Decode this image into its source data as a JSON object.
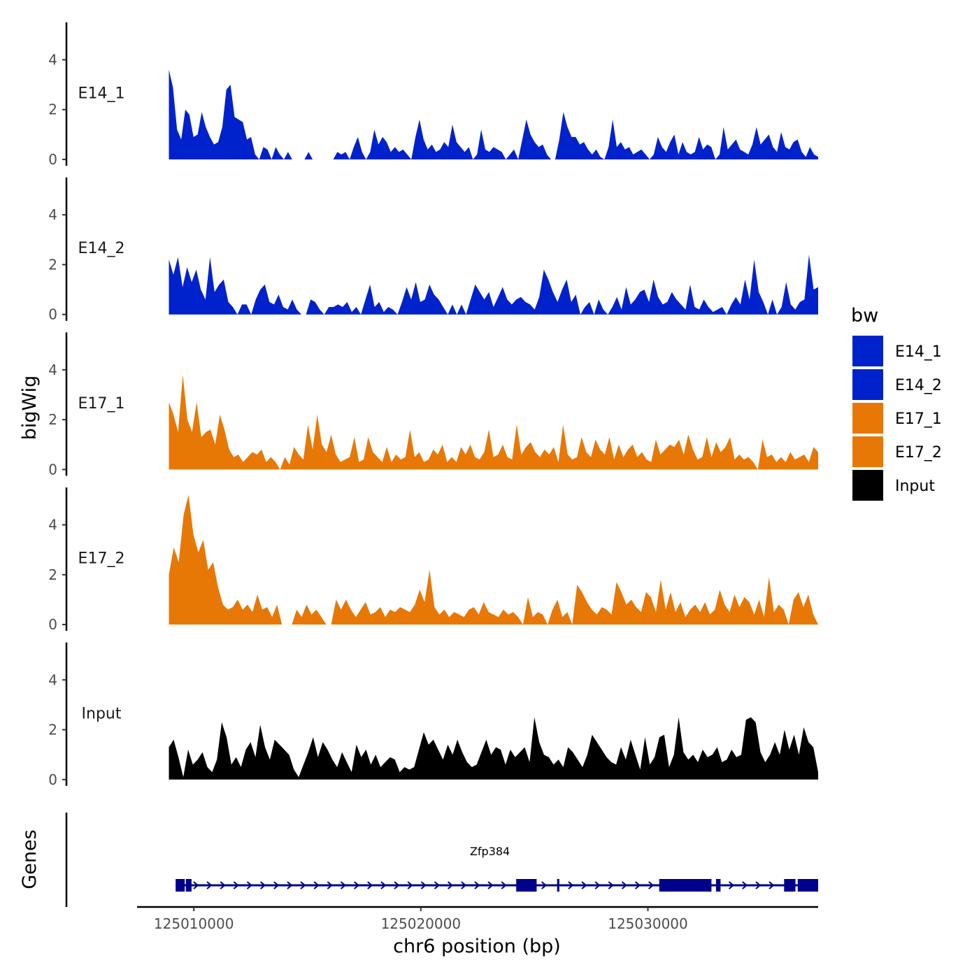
{
  "chart_data": {
    "type": "area",
    "xlabel": "chr6 position (bp)",
    "ylabel": "bigWig",
    "genes_label": "Genes",
    "xlim": [
      125007500,
      125037500
    ],
    "x_ticks": [
      125010000,
      125020000,
      125030000
    ],
    "x_tick_labels": [
      "125010000",
      "125020000",
      "125030000"
    ],
    "ylim": [
      0,
      5.5
    ],
    "y_ticks": [
      0,
      2,
      4
    ],
    "y_tick_labels": [
      "0",
      "2",
      "4"
    ],
    "track_start": 125008900,
    "track_end": 125037500,
    "colors": {
      "E14": "#0022cc",
      "E17": "#e87805",
      "Input": "#000000",
      "gene": "#00008b"
    },
    "series": [
      {
        "name": "E14_1",
        "color": "#0022cc",
        "values": [
          3.6,
          2.9,
          1.2,
          0.8,
          2.0,
          1.8,
          0.9,
          1.0,
          1.9,
          1.3,
          0.9,
          0.6,
          0.7,
          1.3,
          2.8,
          3.0,
          1.7,
          1.6,
          1.5,
          0.8,
          0.9,
          0.2,
          0,
          0.5,
          0.4,
          0,
          0.5,
          0.2,
          0,
          0.3,
          0,
          0,
          0,
          0,
          0.3,
          0,
          0,
          0,
          0,
          0,
          0,
          0.3,
          0.2,
          0.3,
          0,
          0.5,
          0.9,
          0.3,
          0,
          0.3,
          1.2,
          0.6,
          0.9,
          0.7,
          0.3,
          0.5,
          0.3,
          0.4,
          0.2,
          0,
          0.9,
          1.6,
          0.8,
          0.4,
          0.6,
          0.3,
          0.4,
          0.7,
          0.5,
          1.4,
          0.7,
          0.5,
          0.3,
          0.5,
          0,
          0.2,
          1.2,
          0.4,
          0.3,
          0.5,
          0.4,
          0.3,
          0,
          0.2,
          0.4,
          0,
          0.8,
          1.6,
          1.0,
          0.7,
          0.5,
          0.6,
          0.2,
          0,
          0,
          0.8,
          1.9,
          1.3,
          0.9,
          0.9,
          0.6,
          0.7,
          0.4,
          0.2,
          0.4,
          0.1,
          0,
          0.5,
          1.6,
          0.5,
          0.7,
          0.4,
          0.5,
          0.2,
          0.3,
          0.4,
          0.2,
          0,
          0.2,
          0.9,
          0.5,
          0.3,
          0.7,
          1.0,
          0.2,
          0.7,
          0.3,
          0.2,
          0.3,
          0.9,
          0.4,
          0.6,
          0.5,
          0,
          0.2,
          1.3,
          0.4,
          0.6,
          0.8,
          0.4,
          0.3,
          0.2,
          0.6,
          1.3,
          0.6,
          0.8,
          1.0,
          0.5,
          0.3,
          1.1,
          0.5,
          0.4,
          0.7,
          0.8,
          0.3,
          0.1,
          0.5,
          0.2,
          0.1
        ]
      },
      {
        "name": "E14_2",
        "color": "#0022cc",
        "values": [
          2.2,
          1.6,
          2.3,
          1.1,
          1.9,
          1.3,
          1.8,
          1.0,
          0.6,
          2.3,
          0.9,
          1.2,
          1.4,
          0.5,
          0.3,
          0,
          0.4,
          0.4,
          0,
          0.6,
          1.0,
          1.2,
          0.5,
          0.4,
          0.8,
          0.3,
          0.2,
          0.6,
          0.2,
          0,
          0,
          0.6,
          0.5,
          0.2,
          0,
          0.3,
          0.3,
          0.4,
          0.3,
          0.5,
          0.1,
          0.3,
          0,
          0.6,
          1.2,
          0.3,
          0.5,
          0.1,
          0.3,
          0.2,
          0,
          0.5,
          1.1,
          0.6,
          1.3,
          0.5,
          0.6,
          1.2,
          0.8,
          0.6,
          0.3,
          0,
          0.4,
          0,
          0.4,
          0,
          0.6,
          1.2,
          0.9,
          0.6,
          0.9,
          0.3,
          0.7,
          1.1,
          0.6,
          0.4,
          0.6,
          0.7,
          0.5,
          0.4,
          0.2,
          0.7,
          1.8,
          1.4,
          0.9,
          0.5,
          1.0,
          1.4,
          0.5,
          0.8,
          0,
          0.3,
          0.5,
          0,
          0.6,
          0.2,
          0,
          0.3,
          0.7,
          0.2,
          1.1,
          0.4,
          0.6,
          0.9,
          1.0,
          0.5,
          1.4,
          0.7,
          0.4,
          0.5,
          0.9,
          0.6,
          0.4,
          0.2,
          1.2,
          0.3,
          0.2,
          0.6,
          0.3,
          0.1,
          0.2,
          0.3,
          0,
          0.4,
          0.7,
          0.4,
          1.4,
          0.6,
          2.2,
          0.9,
          0.5,
          0,
          0.6,
          0,
          0.3,
          1.3,
          0.4,
          0.2,
          0.5,
          0.6,
          2.4,
          1.0,
          1.1
        ]
      },
      {
        "name": "E17_1",
        "color": "#e87805",
        "values": [
          2.7,
          2.2,
          1.5,
          3.8,
          2.0,
          1.5,
          2.7,
          1.3,
          1.5,
          1.6,
          1.0,
          2.2,
          1.6,
          0.8,
          0.5,
          0.6,
          0.3,
          0.5,
          0.7,
          0.6,
          0.8,
          0.3,
          0.5,
          0.3,
          0,
          0.5,
          0.2,
          0.9,
          0.6,
          0.4,
          1.8,
          0.8,
          2.2,
          1.0,
          0.7,
          1.4,
          0.6,
          0.3,
          0.4,
          0.5,
          1.3,
          0.3,
          0.4,
          1.3,
          0.7,
          0.5,
          0.3,
          0.9,
          0.3,
          0.6,
          0.4,
          0.5,
          1.6,
          0.5,
          0.7,
          0.3,
          0.4,
          0.8,
          0.6,
          1.0,
          0.3,
          0.5,
          0.3,
          0.9,
          0.6,
          1.0,
          0.5,
          0.4,
          0.7,
          1.6,
          0.5,
          0.6,
          1.0,
          0.5,
          0.4,
          1.8,
          0.6,
          0.9,
          1.1,
          0.7,
          0.5,
          0.8,
          0.6,
          0.9,
          0.3,
          1.8,
          0.6,
          0.4,
          0.5,
          1.3,
          0.7,
          0.5,
          1.2,
          0.8,
          0.6,
          1.3,
          0.4,
          1.0,
          0.5,
          0.8,
          1.0,
          0.5,
          0.7,
          0.4,
          0.3,
          1.2,
          0.6,
          0.8,
          1.0,
          0.9,
          1.2,
          0.6,
          1.4,
          0.8,
          0.4,
          0.5,
          1.3,
          0.5,
          1.1,
          0.7,
          0.9,
          1.3,
          0.4,
          0.6,
          0.4,
          0.5,
          0.3,
          0,
          1.2,
          0.5,
          0.6,
          0.3,
          0.5,
          0.3,
          0.7,
          0.4,
          0.5,
          0.6,
          0.3,
          0.9,
          0.7
        ]
      },
      {
        "name": "E17_2",
        "color": "#e87805",
        "values": [
          2.0,
          3.1,
          2.5,
          4.4,
          5.2,
          3.6,
          2.9,
          3.4,
          2.2,
          2.5,
          1.5,
          0.8,
          0.6,
          0.7,
          1.0,
          0.6,
          0.8,
          0.5,
          1.2,
          0.6,
          0.7,
          0.3,
          0.8,
          0,
          0,
          0,
          0.6,
          0.3,
          0.8,
          0.4,
          0.6,
          0.3,
          0,
          0,
          1.0,
          0.6,
          1.0,
          0.6,
          0.3,
          0.6,
          0.9,
          0.4,
          0.5,
          0.7,
          0.3,
          0.6,
          0.5,
          0.7,
          0.6,
          0.5,
          0.8,
          1.4,
          0.9,
          2.2,
          0.7,
          0.4,
          0.6,
          0.3,
          0.5,
          0.4,
          0.3,
          0.6,
          0.7,
          0.4,
          0.9,
          0.5,
          0.4,
          0.3,
          0.6,
          0.4,
          0.5,
          0.3,
          0,
          1.1,
          0.3,
          0.5,
          0.4,
          0,
          0.6,
          1.0,
          0.3,
          0.5,
          0,
          1.6,
          1.3,
          0.9,
          0.6,
          0.4,
          0.7,
          0.6,
          0.4,
          1.7,
          1.3,
          0.8,
          1.0,
          0.7,
          0.5,
          1.3,
          1.1,
          0.5,
          1.8,
          0.6,
          1.3,
          0.5,
          0.9,
          0.3,
          0.6,
          0.8,
          0.5,
          0.9,
          0.4,
          0.6,
          1.4,
          0.8,
          0.5,
          1.2,
          0.7,
          1.1,
          0.9,
          0.4,
          1.0,
          0.3,
          1.9,
          0.5,
          0.8,
          0.6,
          0,
          1.0,
          1.3,
          0.7,
          1.2,
          0.4,
          0
        ]
      },
      {
        "name": "Input",
        "color": "#000000",
        "values": [
          1.3,
          1.6,
          0.9,
          0.1,
          1.2,
          0.6,
          0.8,
          1.1,
          0.5,
          0.3,
          0.8,
          2.3,
          1.7,
          0.6,
          0.9,
          0.5,
          1.2,
          1.5,
          0.9,
          2.2,
          1.3,
          0.8,
          1.6,
          1.4,
          1.2,
          1.0,
          0.4,
          0.1,
          0.6,
          1.1,
          1.7,
          0.9,
          1.5,
          1.2,
          0.8,
          0.5,
          1.1,
          0.7,
          0.3,
          1.4,
          0.9,
          1.2,
          0.6,
          1.0,
          0.5,
          0.7,
          0.9,
          0.8,
          0.3,
          0.5,
          0.4,
          0.5,
          1.2,
          1.9,
          1.4,
          1.6,
          1.2,
          0.8,
          1.4,
          1.0,
          1.6,
          1.1,
          0.7,
          0.5,
          0.6,
          1.1,
          1.6,
          1.0,
          1.3,
          1.2,
          0.6,
          1.2,
          0.9,
          1.1,
          1.3,
          0.7,
          2.5,
          1.5,
          1.0,
          0.9,
          0.6,
          0.8,
          0.5,
          1.3,
          1.1,
          0.8,
          0.5,
          1.0,
          1.8,
          1.5,
          1.2,
          0.9,
          0.7,
          0.6,
          1.3,
          0.8,
          1.6,
          1.0,
          0.4,
          1.7,
          0.6,
          0.9,
          1.7,
          1.8,
          0.5,
          1.0,
          2.5,
          1.1,
          0.8,
          1.0,
          0.7,
          1.2,
          0.9,
          1.0,
          1.3,
          0.7,
          0.8,
          1.2,
          0.9,
          1.0,
          2.4,
          2.5,
          2.3,
          1.1,
          0.7,
          1.0,
          1.5,
          1.0,
          2.0,
          1.2,
          1.8,
          1.0,
          2.1,
          1.5,
          1.3,
          0.3
        ]
      }
    ],
    "legend": {
      "title": "bw",
      "entries": [
        {
          "label": "E14_1",
          "color": "#0022cc"
        },
        {
          "label": "E14_2",
          "color": "#0022cc"
        },
        {
          "label": "E17_1",
          "color": "#e87805"
        },
        {
          "label": "E17_2",
          "color": "#e87805"
        },
        {
          "label": "Input",
          "color": "#000000"
        }
      ]
    },
    "gene": {
      "name": "Zfp384",
      "start": 125009200,
      "end": 125037500,
      "strand": "+",
      "exons": [
        [
          125009200,
          125009600
        ],
        [
          125009650,
          125009900
        ],
        [
          125024200,
          125025100
        ],
        [
          125026000,
          125026100
        ],
        [
          125030500,
          125032800
        ],
        [
          125033000,
          125033200
        ],
        [
          125036000,
          125036500
        ],
        [
          125036600,
          125037500
        ]
      ]
    }
  }
}
